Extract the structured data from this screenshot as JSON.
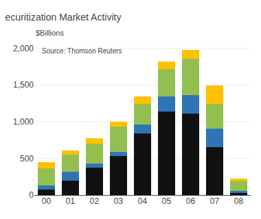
{
  "chart_data": {
    "type": "bar",
    "title": "ecuritization Market Activity",
    "ylabel": "$Billions",
    "annotations": [
      "Source: Thomson Reuters"
    ],
    "stacked": true,
    "categories": [
      "00",
      "01",
      "02",
      "03",
      "04",
      "05",
      "06",
      "07",
      "08"
    ],
    "series": [
      {
        "color": "#111111",
        "values": [
          75,
          200,
          370,
          530,
          840,
          1140,
          1110,
          650,
          30
        ]
      },
      {
        "color": "#2f74b5",
        "values": [
          55,
          120,
          60,
          60,
          120,
          200,
          250,
          260,
          30
        ]
      },
      {
        "color": "#92c050",
        "values": [
          230,
          230,
          270,
          340,
          280,
          380,
          500,
          330,
          130
        ]
      },
      {
        "color": "#ffc000",
        "values": [
          90,
          60,
          75,
          70,
          100,
          100,
          120,
          250,
          30
        ]
      }
    ],
    "ylim": [
      0,
      2100
    ],
    "yticks": [
      0,
      500,
      {
        "value": 1000,
        "label": "1,000"
      },
      {
        "value": 1500,
        "label": "1,500"
      },
      {
        "value": 2000,
        "label": "2,000"
      }
    ],
    "grid": true
  }
}
